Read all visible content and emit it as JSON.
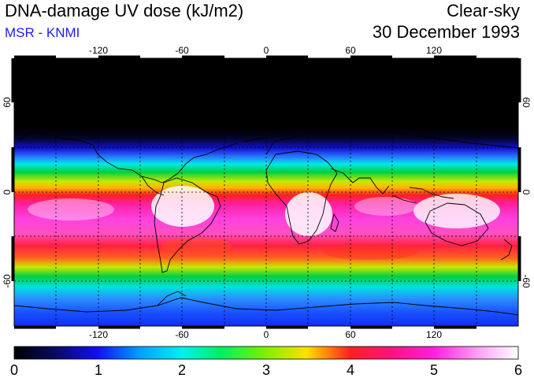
{
  "header": {
    "title": "DNA-damage UV dose (kJ/m2)",
    "subtitle": "MSR - KNMI",
    "subtitle_color": "#1c1cf0",
    "condition": "Clear-sky",
    "date": "30 December 1993"
  },
  "map": {
    "lon_ticks": [
      "-120",
      "-60",
      "0",
      "60",
      "120"
    ],
    "lat_ticks_left": [
      "60",
      "0",
      "-60"
    ],
    "lat_ticks_right": [
      "60",
      "0",
      "-60"
    ],
    "lon_tick_values": [
      -120,
      -60,
      0,
      60,
      120
    ],
    "lat_tick_values": [
      60,
      0,
      -60
    ]
  },
  "colorbar": {
    "labels": [
      "0",
      "1",
      "2",
      "3",
      "4",
      "5",
      "6"
    ],
    "min": 0,
    "max": 6
  }
}
